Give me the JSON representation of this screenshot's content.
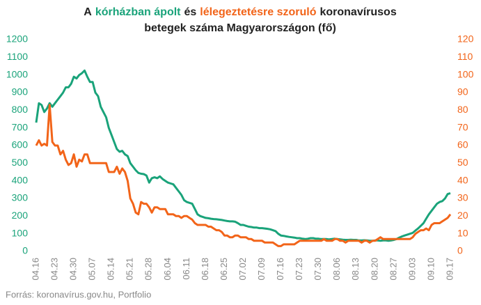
{
  "chart_data": {
    "type": "line",
    "title": [
      [
        {
          "text": "A",
          "color": "#222222"
        },
        {
          "text": "kórházban ápolt",
          "color": "#1aa37a"
        },
        {
          "text": "és",
          "color": "#222222"
        },
        {
          "text": "lélegeztetésre szoruló",
          "color": "#f26419"
        },
        {
          "text": "koronavírusos",
          "color": "#222222"
        }
      ],
      [
        {
          "text": "betegek száma Magyarországon  (fő)",
          "color": "#222222"
        }
      ]
    ],
    "source": "Forrás: koronavírus.gov.hu, Portfolio",
    "categories": [
      "04.16",
      null,
      null,
      null,
      null,
      null,
      null,
      "04.23",
      null,
      null,
      null,
      null,
      null,
      null,
      "04.30",
      null,
      null,
      null,
      null,
      null,
      null,
      "05.07",
      null,
      null,
      null,
      null,
      null,
      null,
      "05.14",
      null,
      null,
      null,
      null,
      null,
      null,
      "05.21",
      null,
      null,
      null,
      null,
      null,
      null,
      "05.28",
      null,
      null,
      null,
      null,
      null,
      null,
      "06.04",
      null,
      null,
      null,
      null,
      null,
      null,
      "06.11",
      null,
      null,
      null,
      null,
      null,
      null,
      "06.18",
      null,
      null,
      null,
      null,
      null,
      null,
      "06.25",
      null,
      null,
      null,
      null,
      null,
      null,
      "07.02",
      null,
      null,
      null,
      null,
      null,
      null,
      "07.09",
      null,
      null,
      null,
      null,
      null,
      null,
      "07.16",
      null,
      null,
      null,
      null,
      null,
      null,
      "07.23",
      null,
      null,
      null,
      null,
      null,
      null,
      "07.30",
      null,
      null,
      null,
      null,
      null,
      null,
      "08.06",
      null,
      null,
      null,
      null,
      null,
      null,
      "08.13",
      null,
      null,
      null,
      null,
      null,
      null,
      "08.20",
      null,
      null,
      null,
      null,
      null,
      null,
      "08.27",
      null,
      null,
      null,
      null,
      null,
      null,
      "09.03",
      null,
      null,
      null,
      null,
      null,
      null,
      "09.10",
      null,
      null,
      null,
      null,
      null,
      null,
      "09.17"
    ],
    "series": [
      {
        "name": "kórházban ápolt",
        "color": "#1aa37a",
        "values": [
          730,
          840,
          830,
          790,
          810,
          840,
          820,
          840,
          860,
          880,
          900,
          930,
          930,
          950,
          990,
          980,
          1000,
          1010,
          1025,
          990,
          960,
          960,
          900,
          880,
          820,
          790,
          760,
          700,
          660,
          620,
          580,
          565,
          570,
          550,
          540,
          500,
          480,
          460,
          445,
          440,
          438,
          430,
          390,
          415,
          420,
          415,
          425,
          410,
          400,
          390,
          385,
          380,
          360,
          340,
          320,
          290,
          280,
          275,
          270,
          240,
          210,
          200,
          195,
          190,
          188,
          185,
          183,
          182,
          180,
          178,
          175,
          172,
          170,
          170,
          168,
          160,
          150,
          150,
          145,
          140,
          138,
          135,
          135,
          132,
          132,
          130,
          128,
          125,
          120,
          115,
          100,
          90,
          88,
          85,
          82,
          80,
          78,
          75,
          75,
          72,
          70,
          72,
          75,
          75,
          72,
          72,
          70,
          70,
          70,
          68,
          70,
          72,
          70,
          68,
          66,
          65,
          65,
          66,
          65,
          65,
          62,
          62,
          63,
          62,
          60,
          60,
          62,
          62,
          60,
          62,
          62,
          60,
          62,
          65,
          70,
          78,
          85,
          90,
          95,
          100,
          105,
          118,
          130,
          145,
          160,
          185,
          210,
          230,
          250,
          270,
          280,
          285,
          300,
          325,
          330
        ]
      },
      {
        "name": "lélegeztetésre szoruló",
        "color": "#f26419",
        "axis": "y2",
        "values": [
          60,
          63,
          60,
          61,
          60,
          83,
          62,
          60,
          60,
          55,
          57,
          52,
          49,
          50,
          55,
          48,
          52,
          51,
          55,
          55,
          50,
          50,
          50,
          50,
          50,
          50,
          50,
          45,
          45,
          45,
          48,
          44,
          47,
          45,
          40,
          30,
          27,
          22,
          21,
          28,
          27,
          27,
          25,
          22,
          25,
          25,
          24,
          24,
          24,
          21,
          21,
          21,
          20,
          20,
          19,
          20,
          20,
          19,
          18,
          16,
          15,
          15,
          15,
          15,
          14,
          14,
          13,
          12,
          12,
          11,
          9,
          9,
          8,
          8,
          9,
          9,
          8,
          8,
          8,
          7,
          7,
          6,
          6,
          6,
          6,
          5,
          5,
          5,
          5,
          4,
          3,
          3,
          4,
          4,
          4,
          4,
          4,
          5,
          6,
          6,
          6,
          6,
          6,
          6,
          6,
          6,
          6,
          7,
          6,
          6,
          6,
          7,
          7,
          6,
          6,
          5,
          6,
          6,
          6,
          6,
          6,
          5,
          6,
          6,
          5,
          6,
          6,
          7,
          8,
          7,
          7,
          7,
          7,
          7,
          7,
          7,
          7,
          7,
          7,
          7,
          8,
          10,
          11,
          12,
          12,
          13,
          12,
          15,
          16,
          16,
          16,
          17,
          18,
          19,
          21
        ]
      }
    ],
    "ylim": [
      0,
      1200
    ],
    "yticks": [
      0,
      100,
      200,
      300,
      400,
      500,
      600,
      700,
      800,
      900,
      1000,
      1100,
      1200
    ],
    "y2lim": [
      0,
      120
    ],
    "y2ticks": [
      0,
      10,
      20,
      30,
      40,
      50,
      60,
      70,
      80,
      90,
      100,
      110,
      120
    ],
    "grid": false
  }
}
